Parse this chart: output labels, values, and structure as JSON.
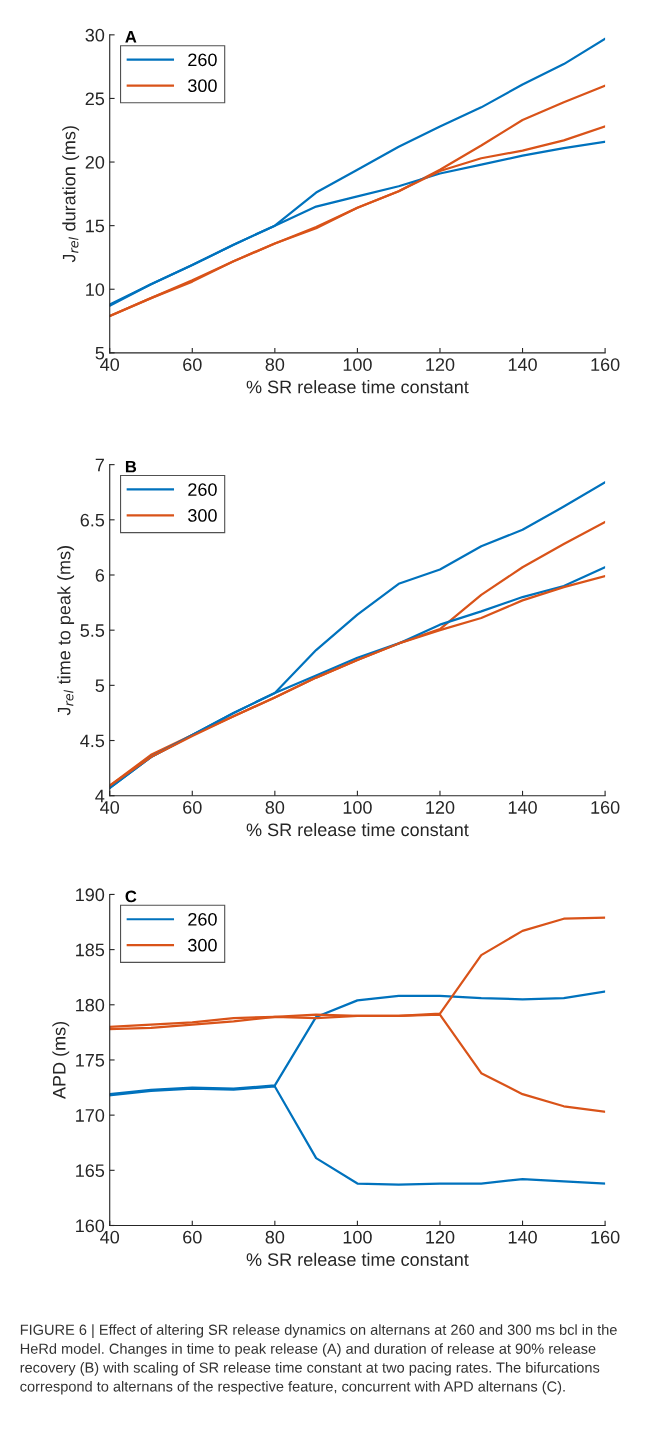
{
  "chart_data": [
    {
      "type": "line",
      "title": "A",
      "xlabel": "% SR release time constant",
      "ylabel": "J$_{rel}$ duration (ms)",
      "x": [
        40,
        50,
        60,
        70,
        80,
        90,
        100,
        110,
        120,
        130,
        140,
        150,
        160
      ],
      "xlim": [
        40,
        160
      ],
      "xticks": [
        40,
        60,
        80,
        100,
        120,
        140,
        160
      ],
      "ylim": [
        5,
        30
      ],
      "yticks": [
        5,
        10,
        15,
        20,
        25,
        30
      ],
      "grid": false,
      "legend": "top left",
      "marker": "none",
      "line_style": "solid",
      "series": [
        {
          "name": "260",
          "color": "#0072bd",
          "values": [
            8.8,
            10.4,
            11.9,
            13.5,
            15.0,
            17.6,
            19.4,
            21.2,
            22.8,
            24.3,
            26.1,
            27.7,
            29.7
          ]
        },
        {
          "name": "300",
          "color": "#d95319",
          "values": [
            7.9,
            9.3,
            10.7,
            12.2,
            13.6,
            14.9,
            16.4,
            17.7,
            19.4,
            21.3,
            23.3,
            24.7,
            26.0
          ]
        },
        {
          "color": "#0072bd",
          "values": [
            8.7,
            10.4,
            11.9,
            13.5,
            15.0,
            16.5,
            17.3,
            18.1,
            19.1,
            19.8,
            20.5,
            21.1,
            21.6
          ]
        },
        {
          "color": "#d95319",
          "values": [
            7.9,
            9.3,
            10.6,
            12.2,
            13.6,
            14.8,
            16.4,
            17.7,
            19.3,
            20.3,
            20.9,
            21.7,
            22.8
          ]
        }
      ]
    },
    {
      "type": "line",
      "title": "B",
      "xlabel": "% SR release time constant",
      "ylabel": "J$_{rel}$ time to peak (ms)",
      "x": [
        40,
        50,
        60,
        70,
        80,
        90,
        100,
        110,
        120,
        130,
        140,
        150,
        160
      ],
      "xlim": [
        40,
        160
      ],
      "xticks": [
        40,
        60,
        80,
        100,
        120,
        140,
        160
      ],
      "ylim": [
        4,
        7
      ],
      "yticks": [
        4,
        4.5,
        5,
        5.5,
        6,
        6.5,
        7
      ],
      "grid": false,
      "legend": "top left",
      "marker": "none",
      "line_style": "solid",
      "series": [
        {
          "name": "260",
          "color": "#0072bd",
          "values": [
            4.07,
            4.35,
            4.55,
            4.75,
            4.93,
            5.32,
            5.64,
            5.92,
            6.05,
            6.26,
            6.41,
            6.62,
            6.84
          ]
        },
        {
          "name": "300",
          "color": "#d95319",
          "values": [
            4.09,
            4.37,
            4.55,
            4.72,
            4.89,
            5.07,
            5.23,
            5.38,
            5.51,
            5.82,
            6.07,
            6.28,
            6.48
          ]
        },
        {
          "color": "#0072bd",
          "values": [
            4.07,
            4.35,
            4.55,
            4.75,
            4.93,
            5.09,
            5.25,
            5.38,
            5.55,
            5.67,
            5.8,
            5.9,
            6.07
          ]
        },
        {
          "color": "#d95319",
          "values": [
            4.09,
            4.35,
            4.54,
            4.72,
            4.89,
            5.07,
            5.23,
            5.38,
            5.5,
            5.61,
            5.77,
            5.89,
            5.99
          ]
        }
      ]
    },
    {
      "type": "line",
      "title": "C",
      "xlabel": "% SR release time constant",
      "ylabel": "APD (ms)",
      "x": [
        40,
        50,
        60,
        70,
        80,
        90,
        100,
        110,
        120,
        130,
        140,
        150,
        160
      ],
      "xlim": [
        40,
        160
      ],
      "xticks": [
        40,
        60,
        80,
        100,
        120,
        140,
        160
      ],
      "ylim": [
        160,
        190
      ],
      "yticks": [
        160,
        165,
        170,
        175,
        180,
        185,
        190
      ],
      "grid": false,
      "legend": "top left",
      "marker": "none",
      "line_style": "solid",
      "series": [
        {
          "name": "260",
          "color": "#0072bd",
          "values": [
            171.9,
            172.3,
            172.5,
            172.4,
            172.7,
            178.9,
            180.4,
            180.8,
            180.8,
            180.6,
            180.5,
            180.6,
            181.2
          ]
        },
        {
          "name": "300",
          "color": "#d95319",
          "values": [
            178.0,
            178.2,
            178.4,
            178.8,
            178.9,
            178.8,
            179.0,
            179.0,
            179.2,
            184.5,
            186.7,
            187.8,
            187.9
          ]
        },
        {
          "color": "#0072bd",
          "values": [
            171.8,
            172.2,
            172.4,
            172.3,
            172.6,
            166.1,
            163.8,
            163.7,
            163.8,
            163.8,
            164.2,
            164.0,
            163.8
          ]
        },
        {
          "color": "#d95319",
          "values": [
            177.8,
            177.9,
            178.2,
            178.5,
            178.9,
            179.1,
            179.0,
            179.0,
            179.1,
            173.8,
            171.9,
            170.8,
            170.3
          ]
        }
      ],
      "annotations": [
        "FIGURE 6 | Effect of altering SR release dynamics on alternans at 260 and 300 ms bcl in the HeRd model. Changes in time to peak release (A) and duration of release at 90% release recovery (B) with scaling of SR release time constant at two pacing rates. The bifurcations correspond to alternans of the respective feature, concurrent with APD alternans (C)."
      ]
    }
  ]
}
